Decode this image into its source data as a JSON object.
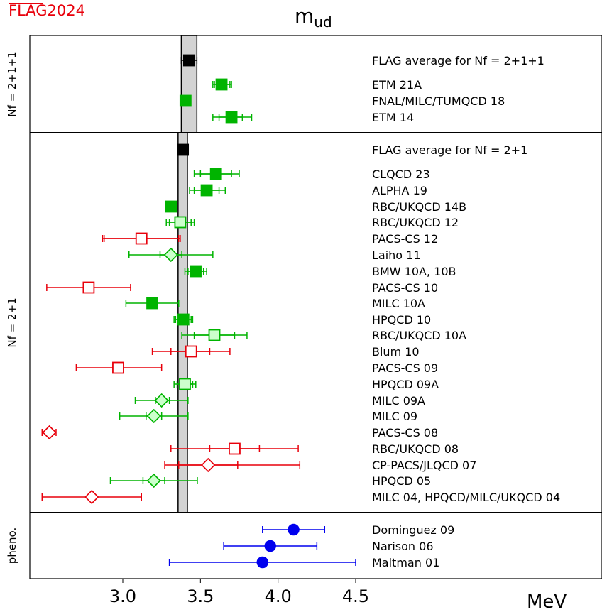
{
  "chart_data": {
    "type": "scatter",
    "title": "m_ud",
    "brand": {
      "flag": "FLAG",
      "year": "2024"
    },
    "xlabel": "MeV",
    "xticks": [
      3.0,
      3.5,
      4.0,
      4.5
    ],
    "xlim": [
      2.4,
      6.05
    ],
    "colors": {
      "average": "#000000",
      "green": "#00b400",
      "light_green": "#ccffcc",
      "red": "#e8000b",
      "blue": "#0000ee",
      "band": "#d3d3d3"
    },
    "panels": [
      {
        "id": "nf211",
        "label": "Nf = 2+1+1",
        "band": [
          3.377,
          3.477
        ],
        "entries": [
          {
            "label": "FLAG average for Nf = 2+1+1",
            "value": 3.427,
            "err_low": 3.377,
            "err_high": 3.477,
            "sys_low": null,
            "sys_high": null,
            "marker": "square",
            "color": "black",
            "filled": true
          },
          {
            "label": "ETM 21A",
            "value": 3.636,
            "err_low": 3.59,
            "err_high": 3.69,
            "sys_low": 3.58,
            "sys_high": 3.7,
            "marker": "square",
            "color": "green",
            "filled": true
          },
          {
            "label": "FNAL/MILC/TUMQCD 18",
            "value": 3.404,
            "err_low": 3.39,
            "err_high": 3.42,
            "sys_low": null,
            "sys_high": null,
            "marker": "square",
            "color": "green",
            "filled": true
          },
          {
            "label": "ETM 14",
            "value": 3.7,
            "err_low": 3.62,
            "err_high": 3.77,
            "sys_low": 3.58,
            "sys_high": 3.83,
            "marker": "square",
            "color": "green",
            "filled": true
          }
        ]
      },
      {
        "id": "nf21",
        "label": "Nf = 2+1",
        "band": [
          3.356,
          3.416
        ],
        "entries": [
          {
            "label": "FLAG average for Nf = 2+1",
            "value": 3.387,
            "err_low": 3.356,
            "err_high": 3.416,
            "sys_low": null,
            "sys_high": null,
            "marker": "square",
            "color": "black",
            "filled": true
          },
          {
            "label": "CLQCD 23",
            "value": 3.6,
            "err_low": 3.5,
            "err_high": 3.7,
            "sys_low": 3.46,
            "sys_high": 3.75,
            "marker": "square",
            "color": "green",
            "filled": true
          },
          {
            "label": "ALPHA 19",
            "value": 3.54,
            "err_low": 3.46,
            "err_high": 3.62,
            "sys_low": 3.43,
            "sys_high": 3.66,
            "marker": "square",
            "color": "green",
            "filled": true
          },
          {
            "label": "RBC/UKQCD 14B",
            "value": 3.31,
            "err_low": 3.28,
            "err_high": 3.34,
            "sys_low": null,
            "sys_high": null,
            "marker": "square",
            "color": "green",
            "filled": true
          },
          {
            "label": "RBC/UKQCD 12",
            "value": 3.37,
            "err_low": 3.3,
            "err_high": 3.44,
            "sys_low": 3.28,
            "sys_high": 3.46,
            "marker": "square",
            "color": "light_green",
            "filled": false
          },
          {
            "label": "PACS-CS 12",
            "value": 3.12,
            "err_low": 2.88,
            "err_high": 3.36,
            "sys_low": 2.87,
            "sys_high": 3.37,
            "marker": "square",
            "color": "red",
            "filled": false
          },
          {
            "label": "Laiho 11",
            "value": 3.31,
            "err_low": 3.24,
            "err_high": 3.38,
            "sys_low": 3.04,
            "sys_high": 3.58,
            "marker": "diamond",
            "color": "light_green",
            "filled": false
          },
          {
            "label": "BMW 10A, 10B",
            "value": 3.469,
            "err_low": 3.42,
            "err_high": 3.52,
            "sys_low": 3.4,
            "sys_high": 3.54,
            "marker": "square",
            "color": "green",
            "filled": true
          },
          {
            "label": "PACS-CS 10",
            "value": 2.78,
            "err_low": 2.51,
            "err_high": 3.05,
            "sys_low": null,
            "sys_high": null,
            "marker": "square",
            "color": "red",
            "filled": false
          },
          {
            "label": "MILC 10A",
            "value": 3.19,
            "err_low": 3.02,
            "err_high": 3.36,
            "sys_low": null,
            "sys_high": null,
            "marker": "square",
            "color": "green",
            "filled": true
          },
          {
            "label": "HPQCD 10",
            "value": 3.39,
            "err_low": 3.34,
            "err_high": 3.44,
            "sys_low": 3.33,
            "sys_high": 3.45,
            "marker": "square",
            "color": "green",
            "filled": true
          },
          {
            "label": "RBC/UKQCD 10A",
            "value": 3.59,
            "err_low": 3.46,
            "err_high": 3.72,
            "sys_low": 3.38,
            "sys_high": 3.8,
            "marker": "square",
            "color": "light_green",
            "filled": false
          },
          {
            "label": "Blum 10",
            "value": 3.44,
            "err_low": 3.31,
            "err_high": 3.56,
            "sys_low": 3.19,
            "sys_high": 3.69,
            "marker": "square",
            "color": "red",
            "filled": false
          },
          {
            "label": "PACS-CS 09",
            "value": 2.97,
            "err_low": 2.7,
            "err_high": 3.25,
            "sys_low": null,
            "sys_high": null,
            "marker": "square",
            "color": "red",
            "filled": false
          },
          {
            "label": "HPQCD 09A",
            "value": 3.4,
            "err_low": 3.35,
            "err_high": 3.45,
            "sys_low": 3.33,
            "sys_high": 3.47,
            "marker": "square",
            "color": "light_green",
            "filled": false
          },
          {
            "label": "MILC 09A",
            "value": 3.25,
            "err_low": 3.21,
            "err_high": 3.3,
            "sys_low": 3.08,
            "sys_high": 3.42,
            "marker": "diamond",
            "color": "light_green",
            "filled": false
          },
          {
            "label": "MILC 09",
            "value": 3.2,
            "err_low": 3.15,
            "err_high": 3.25,
            "sys_low": 2.98,
            "sys_high": 3.42,
            "marker": "diamond",
            "color": "light_green",
            "filled": false
          },
          {
            "label": "PACS-CS 08",
            "value": 2.527,
            "err_low": 2.48,
            "err_high": 2.57,
            "sys_low": null,
            "sys_high": null,
            "marker": "diamond",
            "color": "red",
            "filled": false
          },
          {
            "label": "RBC/UKQCD 08",
            "value": 3.72,
            "err_low": 3.56,
            "err_high": 3.88,
            "sys_low": 3.31,
            "sys_high": 4.13,
            "marker": "square",
            "color": "red",
            "filled": false
          },
          {
            "label": "CP-PACS/JLQCD 07",
            "value": 3.55,
            "err_low": 3.36,
            "err_high": 3.74,
            "sys_low": 3.27,
            "sys_high": 4.14,
            "marker": "diamond",
            "color": "red",
            "filled": false
          },
          {
            "label": "HPQCD 05",
            "value": 3.2,
            "err_low": 3.13,
            "err_high": 3.27,
            "sys_low": 2.92,
            "sys_high": 3.48,
            "marker": "diamond",
            "color": "light_green",
            "filled": false
          },
          {
            "label": "MILC 04, HPQCD/MILC/UKQCD 04",
            "value": 2.8,
            "err_low": 2.48,
            "err_high": 3.12,
            "sys_low": null,
            "sys_high": null,
            "marker": "diamond",
            "color": "red",
            "filled": false
          }
        ]
      },
      {
        "id": "pheno",
        "label": "pheno.",
        "band": null,
        "entries": [
          {
            "label": "Dominguez 09",
            "value": 4.1,
            "err_low": 3.9,
            "err_high": 4.3,
            "sys_low": null,
            "sys_high": null,
            "marker": "circle",
            "color": "blue",
            "filled": true
          },
          {
            "label": "Narison 06",
            "value": 3.95,
            "err_low": 3.65,
            "err_high": 4.25,
            "sys_low": null,
            "sys_high": null,
            "marker": "circle",
            "color": "blue",
            "filled": true
          },
          {
            "label": "Maltman 01",
            "value": 3.9,
            "err_low": 3.3,
            "err_high": 4.5,
            "sys_low": null,
            "sys_high": null,
            "marker": "circle",
            "color": "blue",
            "filled": true
          }
        ]
      }
    ]
  }
}
